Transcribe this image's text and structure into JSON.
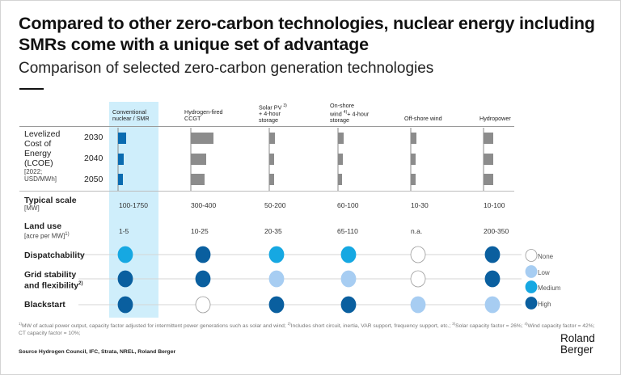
{
  "title": "Compared to other zero-carbon technologies, nuclear energy including SMRs come with a unique set of advantage",
  "subtitle": "Comparison of selected zero-carbon generation technologies",
  "colors": {
    "highlight_band": "#cfeefb",
    "nuclear_bar": "#0a6bb0",
    "other_bar": "#8c8c8c",
    "none": "#ffffff",
    "low": "#a7cdf2",
    "medium": "#16a8e2",
    "high": "#0a5f9f"
  },
  "columns": [
    {
      "key": "nuclear",
      "label_lines": [
        "Conventional",
        "nuclear / SMR"
      ],
      "sup": ""
    },
    {
      "key": "hydrogen",
      "label_lines": [
        "Hydrogen-fired",
        "CCGT"
      ],
      "sup": ""
    },
    {
      "key": "solar",
      "label_lines": [
        "Solar PV",
        "+ 4-hour",
        "storage"
      ],
      "sup": "3)"
    },
    {
      "key": "onshore",
      "label_lines": [
        "On-shore",
        "wind",
        "storage"
      ],
      "sup": "4)",
      "label_line2_suffix": "+ 4-hour"
    },
    {
      "key": "offshore",
      "label_lines": [
        "Off-shore wind"
      ],
      "sup": ""
    },
    {
      "key": "hydro",
      "label_lines": [
        "Hydropower"
      ],
      "sup": ""
    }
  ],
  "rows": {
    "lcoe": {
      "label": "Levelized Cost of Energy (LCOE)",
      "label_lines": [
        "Levelized",
        "Cost of",
        "Energy",
        "(LCOE)"
      ],
      "unit_lines": [
        "[2022;",
        "USD/MWh]"
      ],
      "years": [
        "2030",
        "2040",
        "2050"
      ]
    },
    "scale": {
      "label": "Typical scale",
      "unit": "[MW]",
      "values": [
        "100-1750",
        "300-400",
        "50-200",
        "60-100",
        "10-30",
        "10-100"
      ]
    },
    "land": {
      "label": "Land use",
      "unit": "[acre per MW]",
      "unit_sup": "1)",
      "values": [
        "1-5",
        "10-25",
        "20-35",
        "65-110",
        "n.a.",
        "200-350"
      ]
    },
    "dispatch": {
      "label": "Dispatchability",
      "values": [
        "medium",
        "high",
        "medium",
        "medium",
        "none",
        "high"
      ]
    },
    "grid": {
      "label_lines": [
        "Grid stability",
        "and flexibility"
      ],
      "sup": "2)",
      "values": [
        "high",
        "high",
        "low",
        "low",
        "none",
        "high"
      ]
    },
    "blackstart": {
      "label": "Blackstart",
      "values": [
        "high",
        "none",
        "high",
        "high",
        "low",
        "low"
      ]
    }
  },
  "legend": [
    {
      "key": "none",
      "label": "None"
    },
    {
      "key": "low",
      "label": "Low"
    },
    {
      "key": "medium",
      "label": "Medium"
    },
    {
      "key": "high",
      "label": "High"
    }
  ],
  "chart_data": {
    "type": "bar",
    "title": "Levelized Cost of Energy (LCOE) [2022; USD/MWh]",
    "orientation": "horizontal",
    "value_scale": "relative (no axis shown)",
    "categories": [
      "Conventional nuclear / SMR",
      "Hydrogen-fired CCGT",
      "Solar PV + 4-hour storage",
      "On-shore wind + 4-hour storage",
      "Off-shore wind",
      "Hydropower"
    ],
    "series": [
      {
        "name": "2030",
        "values": [
          10,
          28,
          7,
          7,
          7,
          12
        ]
      },
      {
        "name": "2040",
        "values": [
          7,
          19,
          6,
          6,
          6,
          12
        ]
      },
      {
        "name": "2050",
        "values": [
          6,
          17,
          6,
          5,
          6,
          12
        ]
      }
    ],
    "xlabel": "",
    "ylabel": ""
  },
  "footnote_parts": [
    {
      "sup": "1)",
      "text": "MW of actual power output, capacity factor adjusted for intermittent power generations such as solar and wind; "
    },
    {
      "sup": "2)",
      "text": "Includes short circuit, inertia, VAR support, frequency support, etc.; "
    },
    {
      "sup": "3)",
      "text": "Solar capacity factor = 26%; "
    },
    {
      "sup": "4)",
      "text": "Wind capacity factor = 42%; CT capacity factor = 10%;"
    }
  ],
  "source": "Source Hydrogen Council, IFC, Strata, NREL, Roland Berger",
  "logo_lines": [
    "Roland",
    "Berger"
  ]
}
